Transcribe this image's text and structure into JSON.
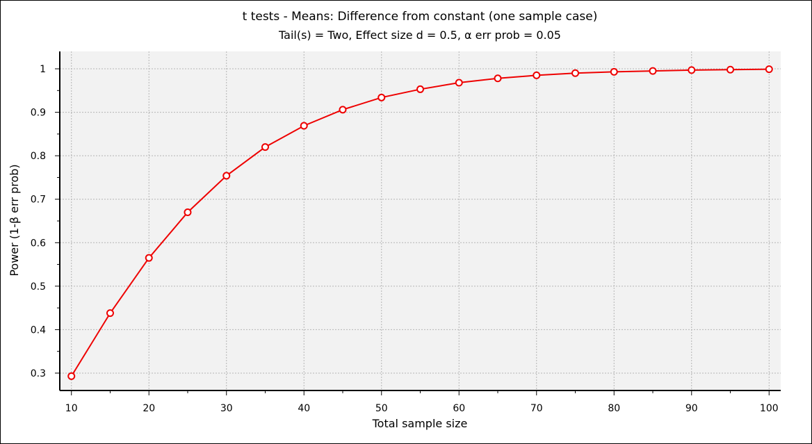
{
  "chart_data": {
    "type": "line",
    "title": "t tests - Means: Difference from constant (one sample case)",
    "subtitle": "Tail(s) = Two, Effect size d = 0.5, α err prob = 0.05",
    "xlabel": "Total sample size",
    "ylabel": "Power (1-β err prob)",
    "xlim": [
      8.5,
      101.5
    ],
    "ylim": [
      0.26,
      1.04
    ],
    "x_ticks": [
      10,
      20,
      30,
      40,
      50,
      60,
      70,
      80,
      90,
      100
    ],
    "y_ticks": [
      0.3,
      0.4,
      0.5,
      0.6,
      0.7,
      0.8,
      0.9,
      1
    ],
    "grid": true,
    "line_color": "#ee0000",
    "plot_background": "#f2f2f2",
    "series": [
      {
        "x": [
          10,
          15,
          20,
          25,
          30,
          35,
          40,
          45,
          50,
          55,
          60,
          65,
          70,
          75,
          80,
          85,
          90,
          95,
          100
        ],
        "values": [
          0.293,
          0.438,
          0.565,
          0.67,
          0.754,
          0.82,
          0.869,
          0.906,
          0.934,
          0.953,
          0.968,
          0.978,
          0.985,
          0.99,
          0.993,
          0.995,
          0.997,
          0.998,
          0.999
        ]
      }
    ]
  }
}
